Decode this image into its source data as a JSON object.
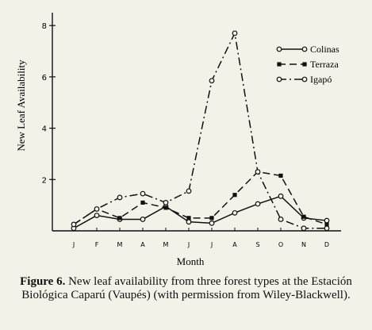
{
  "chart_data": {
    "type": "line",
    "xlabel": "Month",
    "ylabel": "New Leaf Availability",
    "categories": [
      "J",
      "F",
      "M",
      "A",
      "M",
      "J",
      "J",
      "A",
      "S",
      "O",
      "N",
      "D"
    ],
    "yticks": [
      2,
      4,
      6,
      8
    ],
    "ylim": [
      0,
      8.5
    ],
    "legend_position": "top-right",
    "series": [
      {
        "name": "Colinas",
        "style": "solid",
        "marker": "open-circle",
        "values": [
          0.1,
          0.6,
          0.45,
          0.45,
          0.95,
          0.35,
          0.3,
          0.7,
          1.05,
          1.35,
          0.5,
          0.4
        ]
      },
      {
        "name": "Terraza",
        "style": "dashed",
        "marker": "filled-square",
        "values": [
          0.25,
          0.85,
          0.5,
          1.1,
          0.9,
          0.5,
          0.5,
          1.4,
          2.3,
          2.15,
          0.55,
          0.25
        ]
      },
      {
        "name": "Igapó",
        "style": "dash-dot",
        "marker": "open-circle",
        "values": [
          0.25,
          0.85,
          1.3,
          1.45,
          1.1,
          1.55,
          5.85,
          7.7,
          2.3,
          0.45,
          0.1,
          0.1
        ]
      }
    ]
  },
  "caption": {
    "label": "Figure 6.",
    "text": " New leaf availability from three forest types at the Estación Biológica Caparú (Vaupés) (with permission from Wiley-Blackwell)."
  }
}
